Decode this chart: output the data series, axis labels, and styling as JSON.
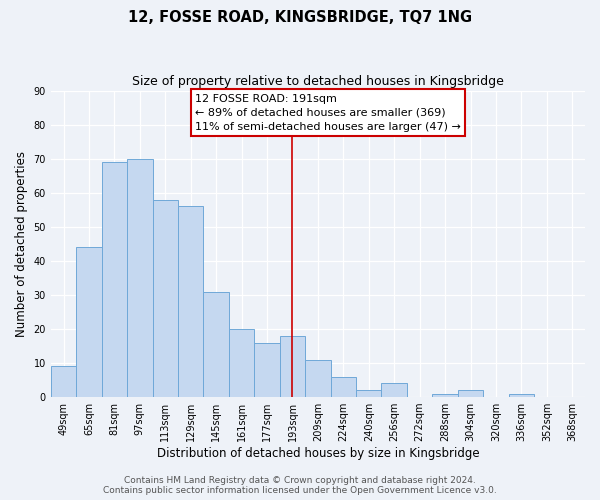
{
  "title": "12, FOSSE ROAD, KINGSBRIDGE, TQ7 1NG",
  "subtitle": "Size of property relative to detached houses in Kingsbridge",
  "xlabel": "Distribution of detached houses by size in Kingsbridge",
  "ylabel": "Number of detached properties",
  "bar_labels": [
    "49sqm",
    "65sqm",
    "81sqm",
    "97sqm",
    "113sqm",
    "129sqm",
    "145sqm",
    "161sqm",
    "177sqm",
    "193sqm",
    "209sqm",
    "224sqm",
    "240sqm",
    "256sqm",
    "272sqm",
    "288sqm",
    "304sqm",
    "320sqm",
    "336sqm",
    "352sqm",
    "368sqm"
  ],
  "bar_values": [
    9,
    44,
    69,
    70,
    58,
    56,
    31,
    20,
    16,
    18,
    11,
    6,
    2,
    4,
    0,
    1,
    2,
    0,
    1,
    0,
    0
  ],
  "bar_color": "#c5d8f0",
  "bar_edge_color": "#6fa8d8",
  "highlight_line_index": 9,
  "highlight_line_color": "#cc0000",
  "ylim": [
    0,
    90
  ],
  "yticks": [
    0,
    10,
    20,
    30,
    40,
    50,
    60,
    70,
    80,
    90
  ],
  "annotation_title": "12 FOSSE ROAD: 191sqm",
  "annotation_line1": "← 89% of detached houses are smaller (369)",
  "annotation_line2": "11% of semi-detached houses are larger (47) →",
  "footer_line1": "Contains HM Land Registry data © Crown copyright and database right 2024.",
  "footer_line2": "Contains public sector information licensed under the Open Government Licence v3.0.",
  "background_color": "#eef2f8",
  "grid_color": "#ffffff",
  "title_fontsize": 10.5,
  "subtitle_fontsize": 9,
  "axis_label_fontsize": 8.5,
  "tick_fontsize": 7,
  "annotation_fontsize": 8,
  "footer_fontsize": 6.5
}
